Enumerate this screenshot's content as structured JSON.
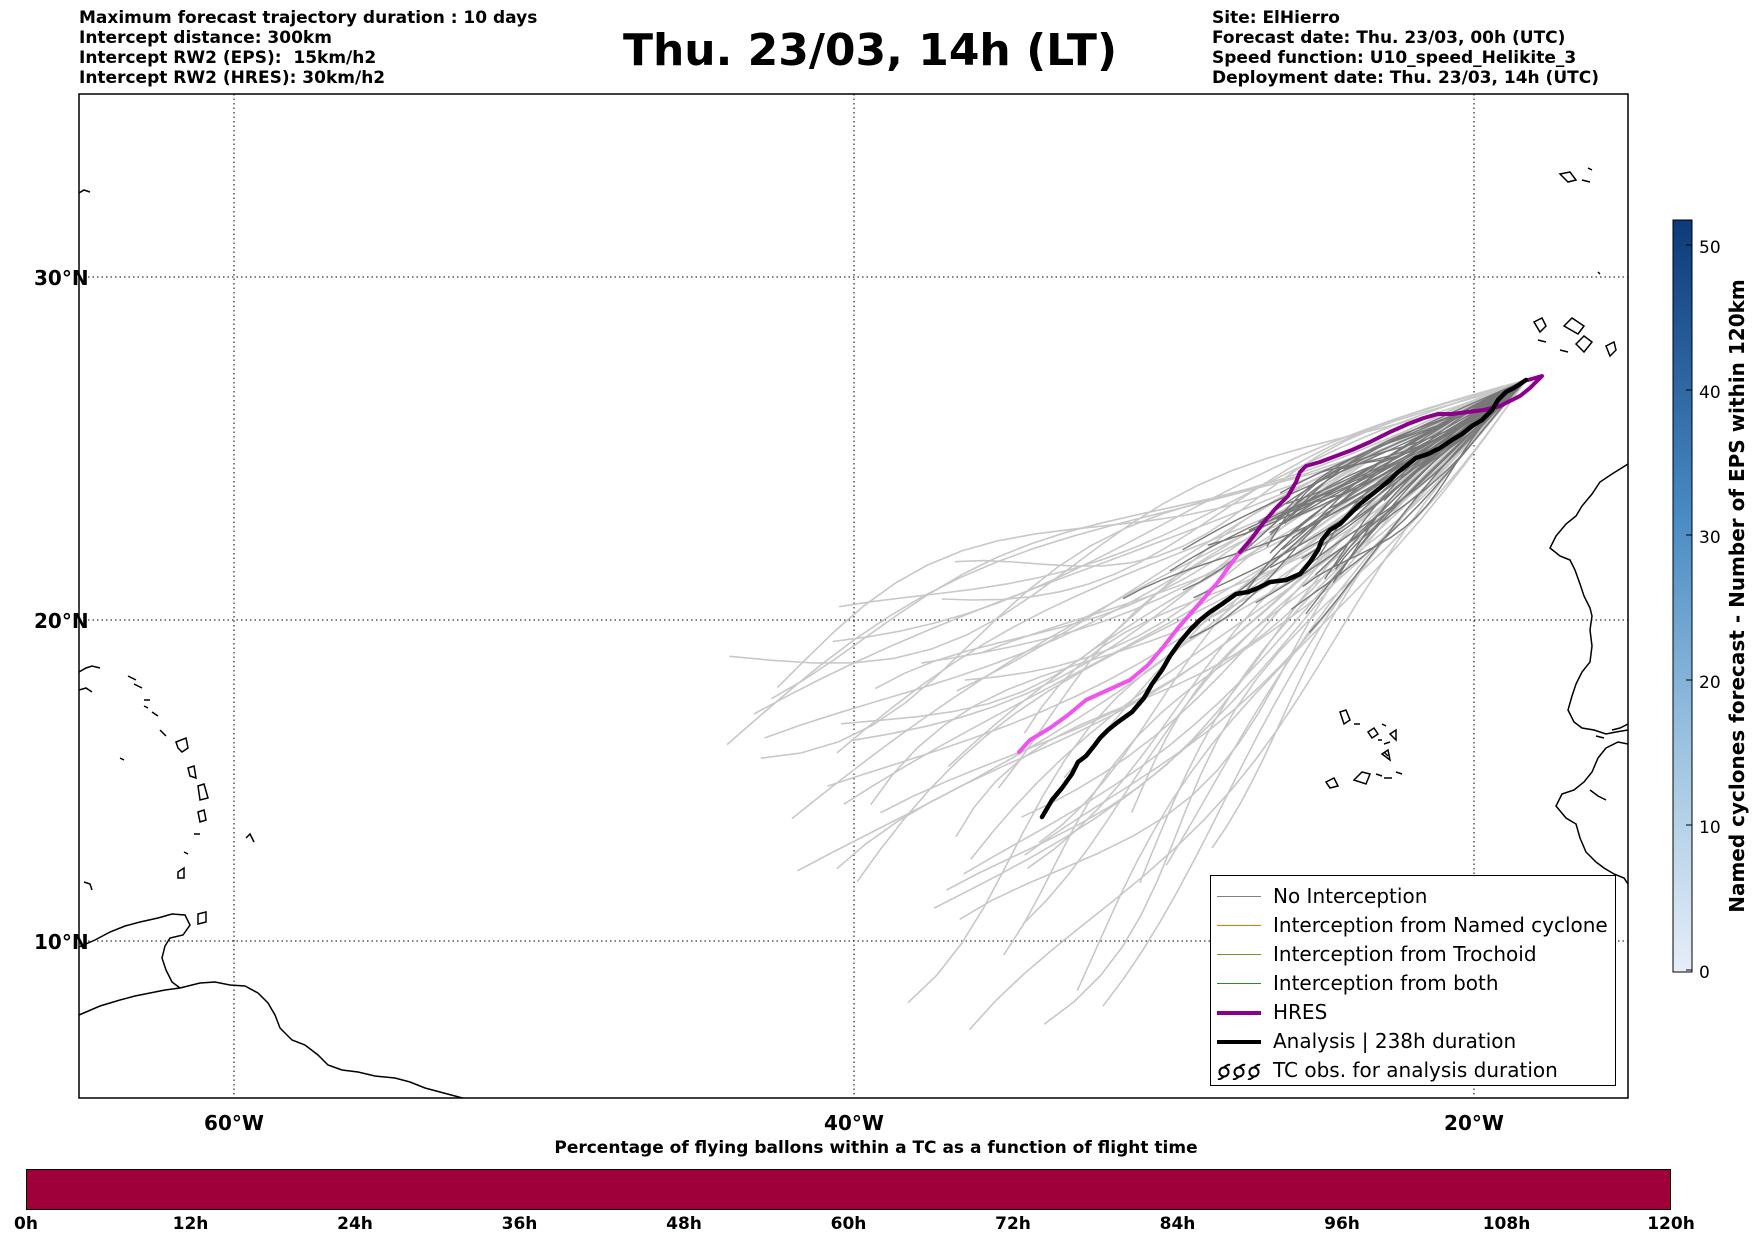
{
  "header_left": {
    "line1": "Maximum forecast trajectory duration : 10 days",
    "line2": "Intercept distance: 300km",
    "line3": "Intercept RW2 (EPS):  15km/h2",
    "line4": "Intercept RW2 (HRES): 30km/h2"
  },
  "title": "Thu. 23/03, 14h (LT)",
  "header_right": {
    "line1": "Site: ElHierro",
    "line2": "Forecast date: Thu. 23/03, 00h (UTC)",
    "line3": "Speed function: U10_speed_Helikite_3",
    "line4": "Deployment date: Thu. 23/03, 14h (UTC)"
  },
  "map": {
    "lat_ticks": [
      "30°N",
      "20°N",
      "10°N"
    ],
    "lon_ticks": [
      "60°W",
      "40°W",
      "20°W"
    ],
    "gridlines": "dotted",
    "colors": {
      "no_interception": "#808080",
      "ensemble_light": "#c8c8c8",
      "named_cyclone": "#ff6a00",
      "trochoid": "#8a8a2a",
      "both": "#2a8a2a",
      "hres": "#8b008b",
      "hres_light": "#ee55ee",
      "analysis": "#000000"
    }
  },
  "legend": {
    "items": [
      {
        "label": "No Interception",
        "icon": "thin-gray-line"
      },
      {
        "label": "Interception from Named cyclone",
        "icon": "thin-orange-line"
      },
      {
        "label": "Interception from Trochoid",
        "icon": "thin-olive-line"
      },
      {
        "label": "Interception from both",
        "icon": "thin-green-line"
      },
      {
        "label": "HRES",
        "icon": "thick-purple-line"
      },
      {
        "label": "Analysis | 238h duration",
        "icon": "thick-black-line"
      },
      {
        "label": "TC obs. for analysis duration",
        "icon": "cyclone-symbols-icon"
      }
    ]
  },
  "colorbar": {
    "label": "Named cyclones forecast - Number of EPS within 120km",
    "ticks": [
      "0",
      "10",
      "20",
      "30",
      "40",
      "50"
    ],
    "color_low": "#e6eef8",
    "color_high": "#0d3a7a"
  },
  "bottom": {
    "title": "Percentage of flying ballons within a TC as a function of flight time",
    "bar_color": "#a0003a",
    "ticks": [
      "0h",
      "12h",
      "24h",
      "36h",
      "48h",
      "60h",
      "72h",
      "84h",
      "96h",
      "108h",
      "120h"
    ]
  }
}
